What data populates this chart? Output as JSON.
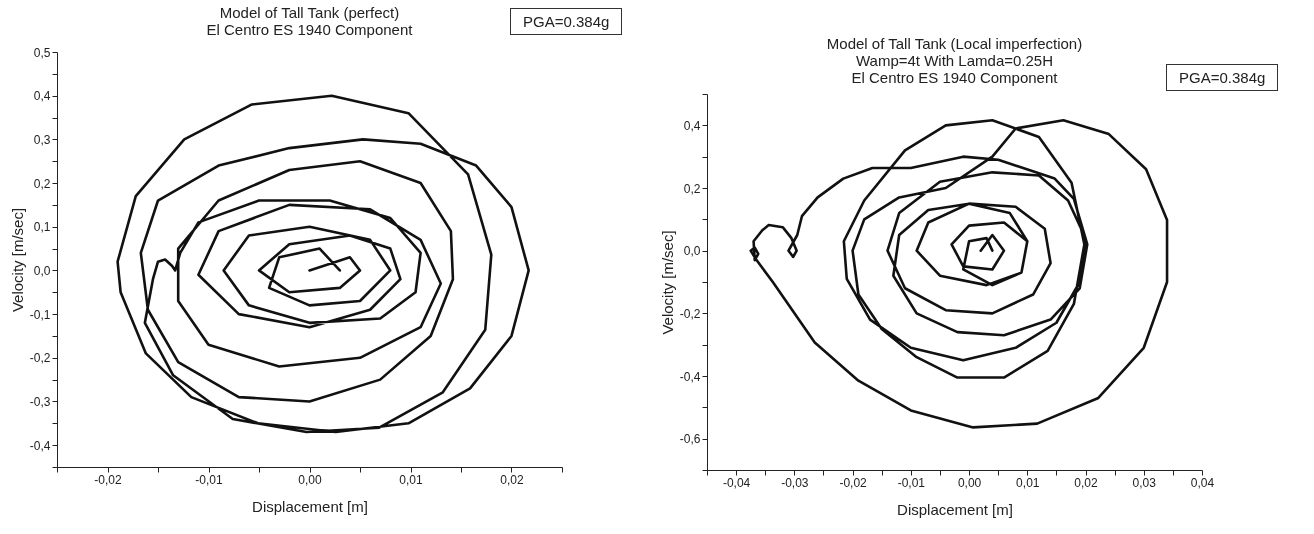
{
  "chart_data": [
    {
      "type": "line",
      "title": "Model of Tall Tank (perfect)",
      "subtitle": "El Centro ES 1940 Component",
      "xlabel": "Displacement [m]",
      "ylabel": "Velocity [m/sec]",
      "annotations": [
        "PGA=0.384g"
      ],
      "grid": false,
      "marker": "none",
      "line_style": "solid",
      "xlim": [
        -0.025,
        0.025
      ],
      "ylim": [
        -0.45,
        0.5
      ],
      "xticks": [
        {
          "value": -0.025,
          "label": null
        },
        {
          "value": -0.02,
          "label": "-0,02"
        },
        {
          "value": -0.015,
          "label": null
        },
        {
          "value": -0.01,
          "label": "-0,01"
        },
        {
          "value": -0.005,
          "label": null
        },
        {
          "value": 0,
          "label": "0,00"
        },
        {
          "value": 0.005,
          "label": null
        },
        {
          "value": 0.01,
          "label": "0,01"
        },
        {
          "value": 0.015,
          "label": null
        },
        {
          "value": 0.02,
          "label": "0,02"
        },
        {
          "value": 0.025,
          "label": null
        }
      ],
      "yticks": [
        {
          "value": -0.45,
          "label": null
        },
        {
          "value": -0.4,
          "label": "-0,4"
        },
        {
          "value": -0.35,
          "label": null
        },
        {
          "value": -0.3,
          "label": "-0,3"
        },
        {
          "value": -0.25,
          "label": null
        },
        {
          "value": -0.2,
          "label": "-0,2"
        },
        {
          "value": -0.15,
          "label": null
        },
        {
          "value": -0.1,
          "label": "-0,1"
        },
        {
          "value": -0.05,
          "label": null
        },
        {
          "value": 0,
          "label": "0,0"
        },
        {
          "value": 0.05,
          "label": null
        },
        {
          "value": 0.1,
          "label": "0,1"
        },
        {
          "value": 0.15,
          "label": null
        },
        {
          "value": 0.2,
          "label": "0,2"
        },
        {
          "value": 0.25,
          "label": null
        },
        {
          "value": 0.3,
          "label": "0,3"
        },
        {
          "value": 0.35,
          "label": null
        },
        {
          "value": 0.4,
          "label": "0,4"
        },
        {
          "value": 0.45,
          "label": null
        },
        {
          "value": 0.5,
          "label": "0,5"
        }
      ],
      "series": [
        {
          "color": "#111111",
          "x": [
            0,
            0.004,
            0.005,
            0.003,
            -0.002,
            -0.005,
            -0.002,
            0.004,
            0.008,
            0.009,
            0.006,
            0,
            -0.007,
            -0.011,
            -0.009,
            -0.002,
            0.006,
            0.011,
            0.013,
            0.011,
            0.005,
            -0.003,
            -0.01,
            -0.013,
            -0.013,
            -0.009,
            -0.002,
            0.005,
            0.011,
            0.014,
            0.0142,
            0.012,
            0.007,
            0,
            -0.007,
            -0.013,
            -0.016,
            -0.0167,
            -0.015,
            -0.009,
            -0.002,
            0.0053,
            0.011,
            0.0165,
            0.02,
            0.0217,
            0.02,
            0.0159,
            0.0098,
            0.0026,
            -0.0051,
            -0.0117,
            -0.0162,
            -0.0187,
            -0.019,
            -0.0172,
            -0.0124,
            -0.0057,
            0.0022,
            0.0098,
            0.0157,
            0.018,
            0.0174,
            0.0132,
            0.0069,
            -0.0003,
            -0.0076,
            -0.0135,
            -0.0163,
            -0.0155,
            -0.015,
            -0.0143,
            -0.0136,
            -0.0133,
            -0.0128,
            -0.011,
            -0.005,
            0.002,
            0.008,
            0.011,
            0.0105,
            0.007,
            0,
            -0.006,
            -0.0085,
            -0.006,
            0,
            0.006,
            0.008,
            0.005,
            0,
            -0.004,
            -0.003,
            0.001,
            0.003
          ],
          "values": [
            0,
            0.03,
            0,
            -0.04,
            -0.05,
            0,
            0.06,
            0.08,
            0.05,
            -0.02,
            -0.09,
            -0.13,
            -0.1,
            -0.01,
            0.09,
            0.15,
            0.14,
            0.07,
            -0.03,
            -0.13,
            -0.2,
            -0.22,
            -0.17,
            -0.07,
            0.05,
            0.16,
            0.23,
            0.25,
            0.2,
            0.09,
            -0.02,
            -0.15,
            -0.25,
            -0.3,
            -0.29,
            -0.21,
            -0.09,
            0.04,
            0.16,
            0.24,
            0.28,
            0.3,
            0.29,
            0.24,
            0.145,
            0,
            -0.15,
            -0.27,
            -0.35,
            -0.37,
            -0.35,
            -0.29,
            -0.19,
            -0.05,
            0.02,
            0.17,
            0.3,
            0.38,
            0.4,
            0.36,
            0.22,
            0.036,
            -0.136,
            -0.279,
            -0.36,
            -0.37,
            -0.34,
            -0.24,
            -0.12,
            -0.02,
            0.02,
            0.025,
            0.01,
            0,
            0.04,
            0.11,
            0.16,
            0.16,
            0.12,
            0.04,
            -0.05,
            -0.11,
            -0.12,
            -0.08,
            0,
            0.08,
            0.1,
            0.07,
            0,
            -0.07,
            -0.08,
            -0.04,
            0.03,
            0.05,
            0
          ]
        }
      ]
    },
    {
      "type": "line",
      "title": "Model of Tall Tank (Local imperfection)",
      "subtitle": "Wamp=4t With Lamda=0.25H\nEl Centro ES 1940 Component",
      "xlabel": "Displacement [m]",
      "ylabel": "Velocity [m/sec]",
      "annotations": [
        "PGA=0.384g"
      ],
      "grid": false,
      "marker": "none",
      "line_style": "solid",
      "xlim": [
        -0.045,
        0.04
      ],
      "ylim": [
        -0.7,
        0.5
      ],
      "xticks": [
        {
          "value": -0.045,
          "label": null
        },
        {
          "value": -0.04,
          "label": "-0,04"
        },
        {
          "value": -0.035,
          "label": null
        },
        {
          "value": -0.03,
          "label": "-0,03"
        },
        {
          "value": -0.025,
          "label": null
        },
        {
          "value": -0.02,
          "label": "-0,02"
        },
        {
          "value": -0.015,
          "label": null
        },
        {
          "value": -0.01,
          "label": "-0,01"
        },
        {
          "value": -0.005,
          "label": null
        },
        {
          "value": 0,
          "label": "0,00"
        },
        {
          "value": 0.005,
          "label": null
        },
        {
          "value": 0.01,
          "label": "0,01"
        },
        {
          "value": 0.015,
          "label": null
        },
        {
          "value": 0.02,
          "label": "0,02"
        },
        {
          "value": 0.025,
          "label": null
        },
        {
          "value": 0.03,
          "label": "0,03"
        },
        {
          "value": 0.035,
          "label": null
        },
        {
          "value": 0.04,
          "label": "0,04"
        }
      ],
      "yticks": [
        {
          "value": -0.7,
          "label": null
        },
        {
          "value": -0.6,
          "label": "-0,6"
        },
        {
          "value": -0.5,
          "label": null
        },
        {
          "value": -0.4,
          "label": "-0,4"
        },
        {
          "value": -0.3,
          "label": null
        },
        {
          "value": -0.2,
          "label": "-0,2"
        },
        {
          "value": -0.1,
          "label": null
        },
        {
          "value": 0,
          "label": "0,0"
        },
        {
          "value": 0.1,
          "label": null
        },
        {
          "value": 0.2,
          "label": "0,2"
        },
        {
          "value": 0.3,
          "label": null
        },
        {
          "value": 0.4,
          "label": "0,4"
        },
        {
          "value": 0.5,
          "label": null
        }
      ],
      "series": [
        {
          "color": "#111111",
          "x": [
            0.002,
            0.004,
            0.006,
            0.004,
            -0.001,
            -0.003,
            0,
            0.006,
            0.01,
            0.009,
            0.003,
            -0.005,
            -0.009,
            -0.007,
            0,
            0.008,
            0.013,
            0.014,
            0.011,
            0.004,
            -0.004,
            -0.011,
            -0.014,
            -0.012,
            -0.005,
            0.004,
            0.012,
            0.017,
            0.02,
            0.019,
            0.015,
            0.008,
            -0.001,
            -0.01,
            -0.017,
            -0.021,
            -0.0215,
            -0.018,
            -0.011,
            -0.004,
            0.004,
            0.012,
            0.0176,
            0.0198,
            0.018,
            0.0135,
            0.006,
            -0.002,
            -0.009,
            -0.015,
            -0.019,
            -0.02,
            -0.018,
            -0.012,
            -0.004,
            0.004,
            0.008,
            0.0162,
            0.024,
            0.0304,
            0.034,
            0.034,
            0.03,
            0.0222,
            0.0117,
            0.0007,
            -0.01,
            -0.019,
            -0.0265,
            -0.0337,
            -0.0365,
            -0.0375,
            -0.0368,
            -0.0362,
            -0.0368,
            -0.037,
            -0.0355,
            -0.0344,
            -0.032,
            -0.0305,
            -0.0296,
            -0.0302,
            -0.031,
            -0.0295,
            -0.0287,
            -0.026,
            -0.0216,
            -0.0166,
            -0.01,
            -0.001,
            0.005,
            0.0147,
            0.018,
            0.0203,
            0.019,
            0.014,
            0.006,
            -0.002,
            -0.009,
            -0.013,
            -0.012,
            -0.007,
            0,
            0.007,
            0.01,
            0.009,
            0.004,
            -0.001,
            0,
            0.003,
            0.004
          ],
          "values": [
            0,
            0.05,
            0,
            -0.06,
            -0.05,
            0.02,
            0.08,
            0.09,
            0.03,
            -0.07,
            -0.11,
            -0.08,
            0,
            0.09,
            0.15,
            0.14,
            0.07,
            -0.04,
            -0.14,
            -0.2,
            -0.19,
            -0.12,
            0,
            0.12,
            0.22,
            0.25,
            0.24,
            0.16,
            0.04,
            -0.1,
            -0.23,
            -0.31,
            -0.35,
            -0.31,
            -0.22,
            -0.09,
            0.03,
            0.16,
            0.32,
            0.4,
            0.416,
            0.363,
            0.217,
            0.02,
            -0.17,
            -0.32,
            -0.405,
            -0.405,
            -0.34,
            -0.25,
            -0.14,
            0,
            0.1,
            0.17,
            0.2,
            0.3,
            0.39,
            0.416,
            0.372,
            0.26,
            0.098,
            -0.1,
            -0.31,
            -0.47,
            -0.552,
            -0.564,
            -0.51,
            -0.415,
            -0.293,
            -0.1,
            -0.03,
            0,
            0.01,
            -0.01,
            -0.03,
            0.03,
            0.065,
            0.082,
            0.075,
            0.04,
            0,
            -0.02,
            0,
            0.05,
            0.11,
            0.17,
            0.23,
            0.264,
            0.264,
            0.3,
            0.29,
            0.23,
            0.165,
            0.02,
            -0.12,
            -0.22,
            -0.27,
            -0.26,
            -0.2,
            -0.08,
            0.05,
            0.13,
            0.15,
            0.12,
            0.03,
            -0.07,
            -0.11,
            -0.06,
            0.03,
            0.04,
            0
          ]
        }
      ]
    }
  ]
}
